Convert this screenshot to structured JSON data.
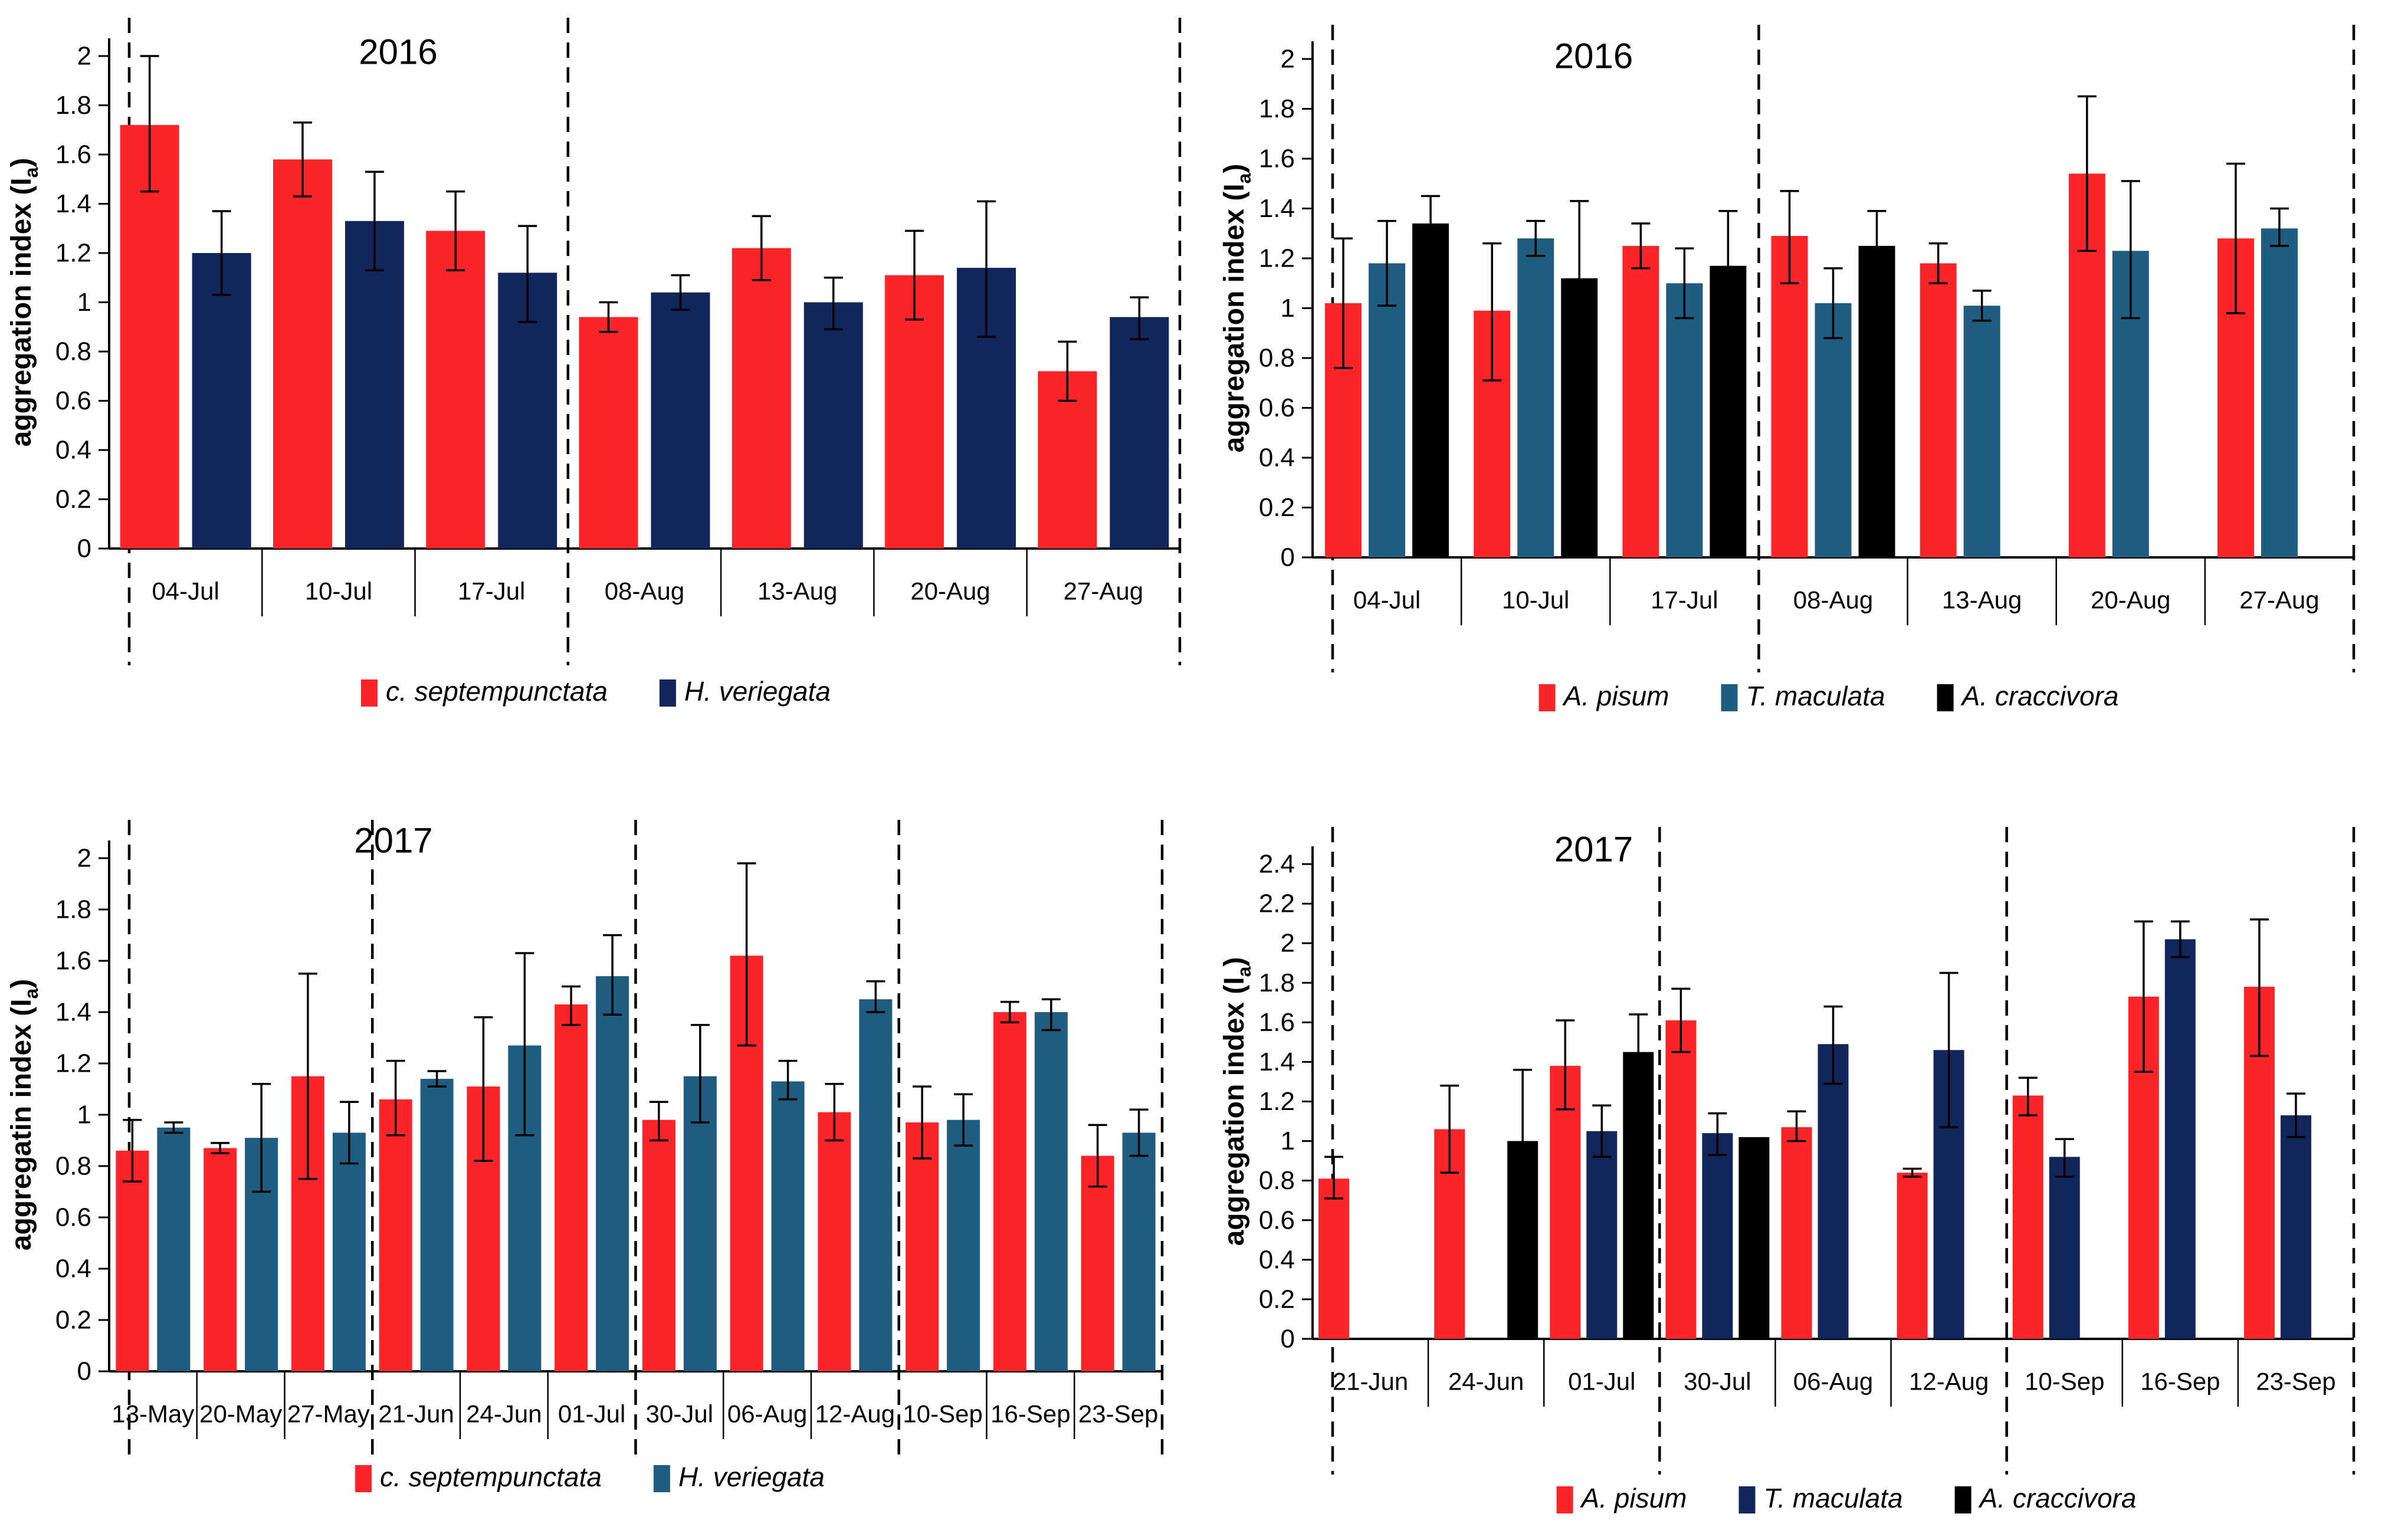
{
  "figure": {
    "background": "#ffffff"
  },
  "colors": {
    "red": "#fb2429",
    "navy": "#13265c",
    "steel_blue": "#1f5c7f",
    "black": "#000000",
    "axis": "#000000"
  },
  "chart_data": [
    {
      "id": "predators-2016",
      "type": "bar",
      "title": "2016",
      "ylabel": {
        "pre": "aggregation index (I",
        "sub": "a",
        "post": ")"
      },
      "ylim": [
        0,
        2
      ],
      "ytick_step": 0.2,
      "grid": "off",
      "legend_position": "bottom",
      "categories": [
        "04-Jul",
        "10-Jul",
        "17-Jul",
        "08-Aug",
        "13-Aug",
        "20-Aug",
        "27-Aug"
      ],
      "group_separators_after": [
        2
      ],
      "series": [
        {
          "name": "c. septempunctata",
          "color_key": "red",
          "values": [
            1.72,
            1.58,
            1.29,
            0.94,
            1.22,
            1.11,
            0.72
          ],
          "err_lo": [
            1.45,
            1.43,
            1.13,
            0.88,
            1.09,
            0.93,
            0.6
          ],
          "err_hi": [
            2.0,
            1.73,
            1.45,
            1.0,
            1.35,
            1.29,
            0.84
          ]
        },
        {
          "name": "H. veriegata",
          "color_key": "navy",
          "values": [
            1.2,
            1.33,
            1.12,
            1.04,
            1.0,
            1.14,
            0.94
          ],
          "err_lo": [
            1.03,
            1.13,
            0.92,
            0.97,
            0.89,
            0.86,
            0.85
          ],
          "err_hi": [
            1.37,
            1.53,
            1.31,
            1.11,
            1.1,
            1.41,
            1.02
          ]
        }
      ]
    },
    {
      "id": "aphids-2016",
      "type": "bar",
      "title": "2016",
      "ylabel": {
        "pre": "aggregation index (I",
        "sub": "a",
        "post": ")"
      },
      "ylim": [
        0,
        2
      ],
      "ytick_step": 0.2,
      "grid": "off",
      "legend_position": "bottom",
      "categories": [
        "04-Jul",
        "10-Jul",
        "17-Jul",
        "08-Aug",
        "13-Aug",
        "20-Aug",
        "27-Aug"
      ],
      "group_separators_after": [
        2
      ],
      "series": [
        {
          "name": "A. pisum",
          "color_key": "red",
          "values": [
            1.02,
            0.99,
            1.25,
            1.29,
            1.18,
            1.54,
            1.28
          ],
          "err_lo": [
            0.76,
            0.71,
            1.16,
            1.1,
            1.1,
            1.23,
            0.98
          ],
          "err_hi": [
            1.28,
            1.26,
            1.34,
            1.47,
            1.26,
            1.85,
            1.58
          ]
        },
        {
          "name": "T. maculata",
          "color_key": "steel_blue",
          "values": [
            1.18,
            1.28,
            1.1,
            1.02,
            1.01,
            1.23,
            1.32
          ],
          "err_lo": [
            1.01,
            1.21,
            0.96,
            0.88,
            0.95,
            0.96,
            1.25
          ],
          "err_hi": [
            1.35,
            1.35,
            1.24,
            1.16,
            1.07,
            1.51,
            1.4
          ]
        },
        {
          "name": "A. craccivora",
          "color_key": "black",
          "values": [
            1.34,
            1.12,
            1.17,
            1.25,
            null,
            null,
            null
          ],
          "err_lo": [
            1.23,
            0.81,
            1.05,
            1.1,
            null,
            null,
            null
          ],
          "err_hi": [
            1.45,
            1.43,
            1.39,
            1.39,
            null,
            null,
            null
          ]
        }
      ]
    },
    {
      "id": "predators-2017",
      "type": "bar",
      "title": "2017",
      "ylabel": {
        "pre": "aggregatin index (I",
        "sub": "a",
        "post": ")"
      },
      "ylim": [
        0,
        2
      ],
      "ytick_step": 0.2,
      "grid": "off",
      "legend_position": "bottom",
      "categories": [
        "13-May",
        "20-May",
        "27-May",
        "21-Jun",
        "24-Jun",
        "01-Jul",
        "30-Jul",
        "06-Aug",
        "12-Aug",
        "10-Sep",
        "16-Sep",
        "23-Sep"
      ],
      "group_separators_after": [
        2,
        5,
        8
      ],
      "series": [
        {
          "name": "c. septempunctata",
          "color_key": "red",
          "values": [
            0.86,
            0.87,
            1.15,
            1.06,
            1.11,
            1.43,
            0.98,
            1.62,
            1.01,
            0.97,
            1.4,
            0.84
          ],
          "err_lo": [
            0.74,
            0.85,
            0.75,
            0.92,
            0.82,
            1.35,
            0.9,
            1.27,
            0.9,
            0.83,
            1.36,
            0.72
          ],
          "err_hi": [
            0.98,
            0.89,
            1.55,
            1.21,
            1.38,
            1.5,
            1.05,
            1.98,
            1.12,
            1.11,
            1.44,
            0.96
          ]
        },
        {
          "name": "H. veriegata",
          "color_key": "steel_blue",
          "values": [
            0.95,
            0.91,
            0.93,
            1.14,
            1.27,
            1.54,
            1.15,
            1.13,
            1.45,
            0.98,
            1.4,
            0.93
          ],
          "err_lo": [
            0.93,
            0.7,
            0.81,
            1.11,
            0.92,
            1.39,
            0.97,
            1.06,
            1.4,
            0.88,
            1.33,
            0.84
          ],
          "err_hi": [
            0.97,
            1.12,
            1.05,
            1.17,
            1.63,
            1.7,
            1.35,
            1.21,
            1.52,
            1.08,
            1.45,
            1.02
          ]
        }
      ]
    },
    {
      "id": "aphids-2017",
      "type": "bar",
      "title": "2017",
      "ylabel": {
        "pre": "aggregation index (I",
        "sub": "a",
        "post": ")"
      },
      "ylim": [
        0,
        2.4
      ],
      "ytick_step": 0.2,
      "grid": "off",
      "legend_position": "bottom",
      "categories": [
        "21-Jun",
        "24-Jun",
        "01-Jul",
        "30-Jul",
        "06-Aug",
        "12-Aug",
        "10-Sep",
        "16-Sep",
        "23-Sep"
      ],
      "group_separators_after": [
        2,
        5
      ],
      "series": [
        {
          "name": "A. pisum",
          "color_key": "red",
          "values": [
            0.81,
            1.06,
            1.38,
            1.61,
            1.07,
            0.84,
            1.23,
            1.73,
            1.78
          ],
          "err_lo": [
            0.71,
            0.84,
            1.16,
            1.45,
            1.0,
            0.82,
            1.13,
            1.35,
            1.43
          ],
          "err_hi": [
            0.92,
            1.28,
            1.61,
            1.77,
            1.15,
            0.86,
            1.32,
            2.11,
            2.12
          ]
        },
        {
          "name": "T. maculata",
          "color_key": "navy",
          "values": [
            null,
            null,
            1.05,
            1.04,
            1.49,
            1.46,
            0.92,
            2.02,
            1.13
          ],
          "err_lo": [
            null,
            null,
            0.92,
            0.93,
            1.29,
            1.07,
            0.82,
            1.93,
            1.02
          ],
          "err_hi": [
            null,
            null,
            1.18,
            1.14,
            1.68,
            1.85,
            1.01,
            2.11,
            1.24
          ]
        },
        {
          "name": "A. craccivora",
          "color_key": "black",
          "values": [
            null,
            1.0,
            1.45,
            1.02,
            null,
            null,
            null,
            null,
            null
          ],
          "err_lo": [
            null,
            0.9,
            1.33,
            null,
            null,
            null,
            null,
            null,
            null
          ],
          "err_hi": [
            null,
            1.36,
            1.64,
            null,
            null,
            null,
            null,
            null,
            null
          ]
        }
      ]
    }
  ]
}
